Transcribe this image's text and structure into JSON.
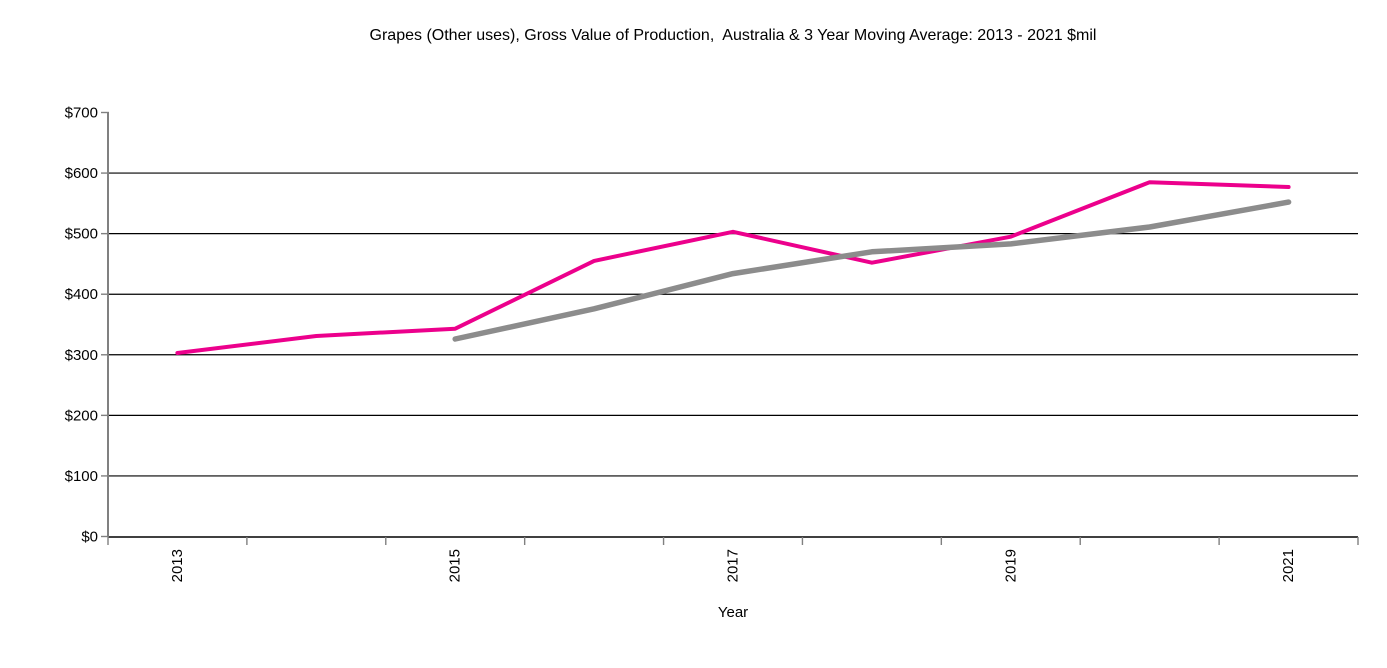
{
  "chart_data": {
    "type": "line",
    "title": "Grapes (Other uses), Gross Value of Production,  Australia & 3 Year Moving Average: 2013 - 2021 $mil",
    "xlabel": "Year",
    "ylabel": "",
    "categories": [
      2013,
      2014,
      2015,
      2016,
      2017,
      2018,
      2019,
      2020,
      2021
    ],
    "x_axis": {
      "tick_labels": [
        "2013",
        "2015",
        "2017",
        "2019",
        "2021"
      ]
    },
    "y_axis": {
      "min": 0,
      "max": 700,
      "tick_step": 100,
      "tick_prefix": "$",
      "tick_labels": [
        "$0",
        "$100",
        "$200",
        "$300",
        "$400",
        "$500",
        "$600",
        "$700"
      ],
      "gridline_values": [
        100,
        200,
        300,
        400,
        500,
        600
      ]
    },
    "series": [
      {
        "name": "Gross Value of Production",
        "color": "#EC008C",
        "values": [
          303,
          331,
          343,
          455,
          503,
          452,
          495,
          585,
          577
        ]
      },
      {
        "name": "3 Year Moving Average",
        "color": "#8C8C8C",
        "values": [
          null,
          null,
          326,
          376,
          434,
          470,
          483,
          511,
          552
        ]
      }
    ],
    "legend": "none",
    "grid": "horizontal",
    "background": "#FFFFFF",
    "axis_colors": {
      "y_axis_line": "#808080",
      "x_axis_line": "#000000",
      "tick_color": "#808080",
      "gridline_color": "#000000"
    }
  }
}
